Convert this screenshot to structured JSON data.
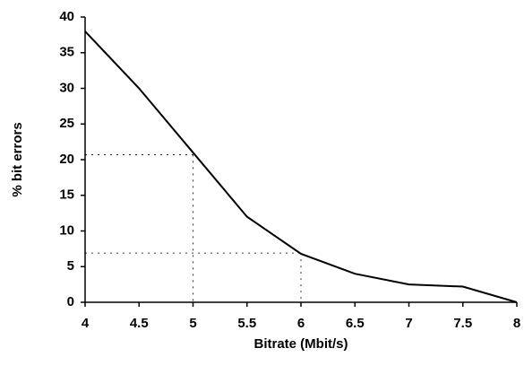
{
  "chart_data": {
    "type": "line",
    "xlabel": "Bitrate (Mbit/s)",
    "ylabel": "% bit errors",
    "x": [
      4,
      4.5,
      5,
      5.5,
      6,
      6.5,
      7,
      7.5,
      8
    ],
    "values": [
      38,
      30,
      21,
      12,
      6.8,
      4,
      2.5,
      2.2,
      0
    ],
    "color": "#000000",
    "xlim": [
      4,
      8
    ],
    "xticks": [
      4,
      4.5,
      5,
      5.5,
      6,
      6.5,
      7,
      7.5,
      8
    ],
    "ylim": [
      0,
      40
    ],
    "yticks": [
      0,
      5,
      10,
      15,
      20,
      25,
      30,
      35,
      40
    ],
    "reference_points": [
      {
        "x": 5,
        "y": 20.7
      },
      {
        "x": 6,
        "y": 6.9
      }
    ]
  }
}
